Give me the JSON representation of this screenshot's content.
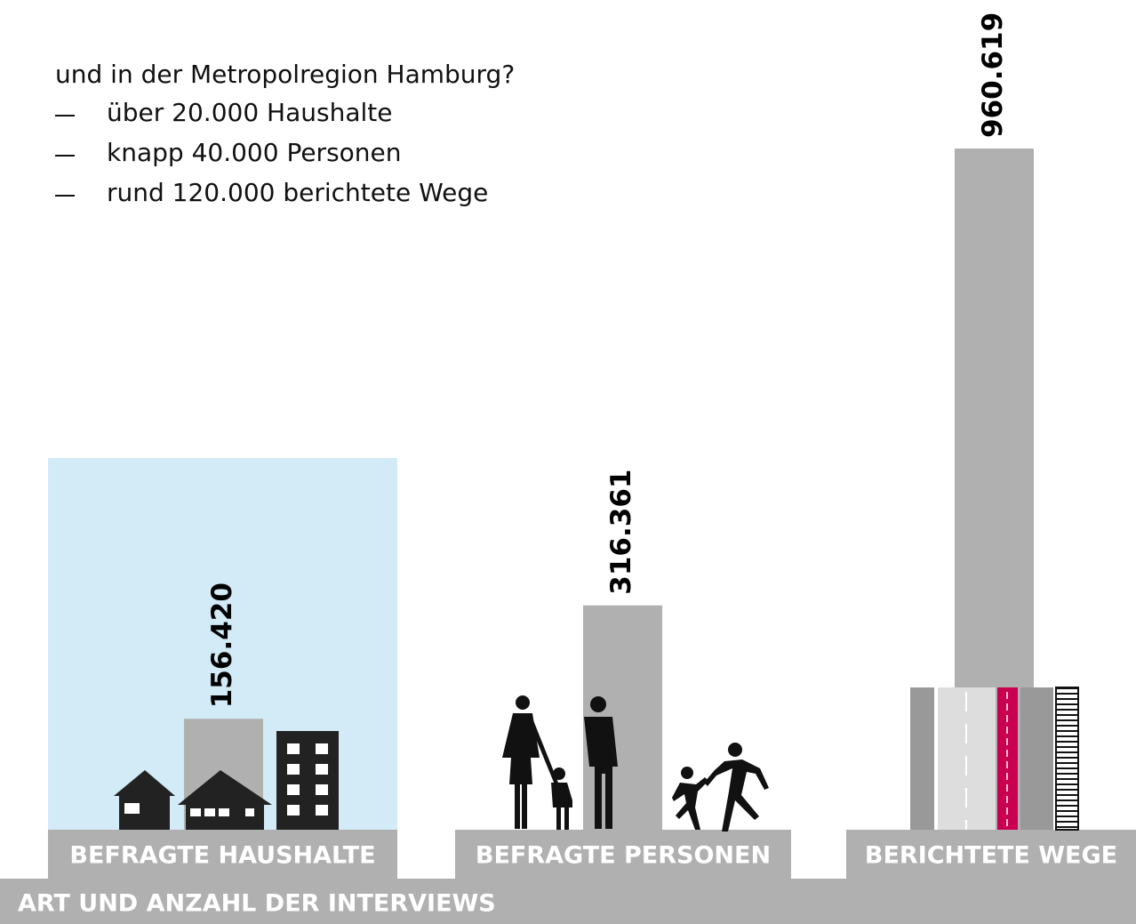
{
  "chart_data": {
    "type": "bar",
    "title": "ART UND ANZAHL DER INTERVIEWS",
    "subtitle": "und in der Metropolregion Hamburg?",
    "annotations": [
      "über 20.000 Haushalte",
      "knapp 40.000 Personen",
      "rund 120.000 berichtete Wege"
    ],
    "categories": [
      "BEFRAGTE HAUSHALTE",
      "BEFRAGTE PERSONEN",
      "BERICHTETE WEGE"
    ],
    "values": [
      156420,
      316361,
      960619
    ],
    "value_labels": [
      "156.420",
      "316.361",
      "960.619"
    ],
    "color": "#b0b0b0"
  }
}
